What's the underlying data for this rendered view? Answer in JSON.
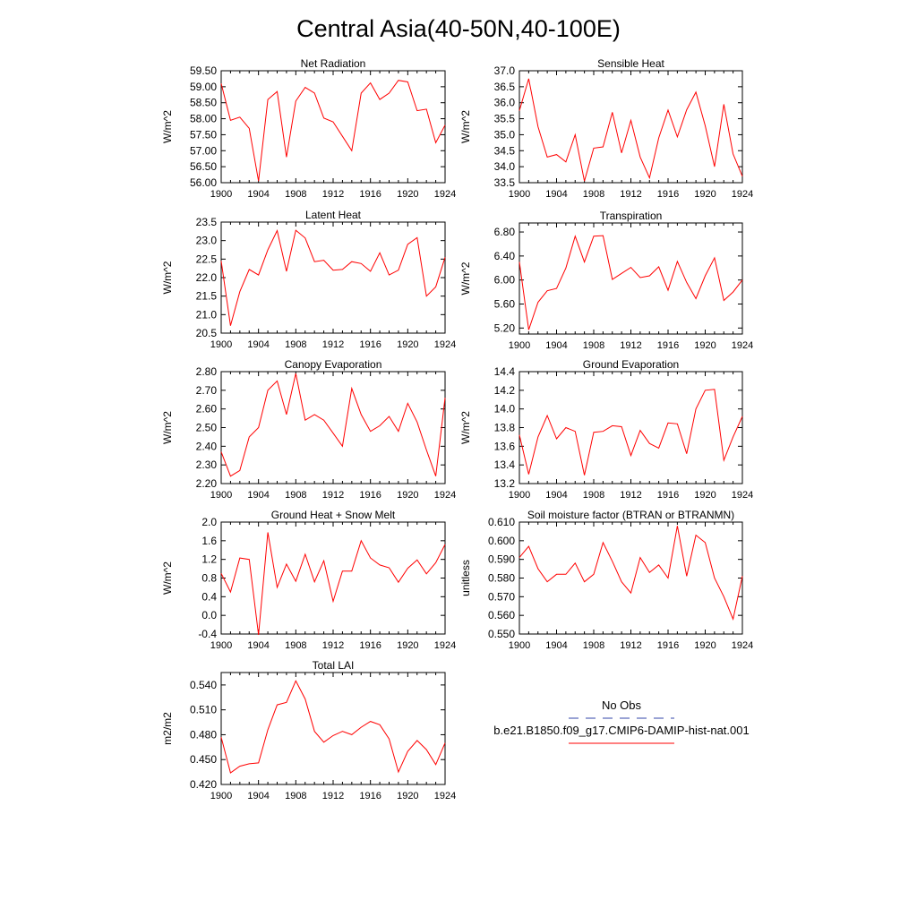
{
  "title": "Central Asia(40-50N,40-100E)",
  "legend": {
    "obs_label": "No Obs",
    "obs_color": "#3344aa",
    "model_label": "b.e21.B1850.f09_g17.CMIP6-DAMIP-hist-nat.001",
    "model_color": "#ff0000"
  },
  "chart_data": [
    {
      "type": "line",
      "title": "Net Radiation",
      "ylabel": "W/m^2",
      "xlim": [
        1900,
        1924
      ],
      "ylim": [
        56.0,
        59.5
      ],
      "xticks": [
        "1900",
        "1904",
        "1908",
        "1912",
        "1916",
        "1920",
        "1924"
      ],
      "yticks": [
        "56.00",
        "56.50",
        "57.00",
        "57.50",
        "58.00",
        "58.50",
        "59.00",
        "59.50"
      ],
      "series": [
        {
          "color": "#ff0000",
          "x": [
            1900,
            1901,
            1902,
            1903,
            1904,
            1905,
            1906,
            1907,
            1908,
            1909,
            1910,
            1911,
            1912,
            1913,
            1914,
            1915,
            1916,
            1917,
            1918,
            1919,
            1920,
            1921,
            1922,
            1923,
            1924
          ],
          "y": [
            59.1,
            57.95,
            58.05,
            57.7,
            56.05,
            58.6,
            58.85,
            56.8,
            58.55,
            58.98,
            58.8,
            58.02,
            57.9,
            57.45,
            57.0,
            58.8,
            59.12,
            58.6,
            58.8,
            59.2,
            59.15,
            58.25,
            58.3,
            57.25,
            57.8
          ]
        }
      ]
    },
    {
      "type": "line",
      "title": "Sensible Heat",
      "ylabel": "W/m^2",
      "xlim": [
        1900,
        1924
      ],
      "ylim": [
        33.5,
        37.0
      ],
      "xticks": [
        "1900",
        "1904",
        "1908",
        "1912",
        "1916",
        "1920",
        "1924"
      ],
      "yticks": [
        "33.5",
        "34.0",
        "34.5",
        "35.0",
        "35.5",
        "36.0",
        "36.5",
        "37.0"
      ],
      "series": [
        {
          "color": "#ff0000",
          "x": [
            1900,
            1901,
            1902,
            1903,
            1904,
            1905,
            1906,
            1907,
            1908,
            1909,
            1910,
            1911,
            1912,
            1913,
            1914,
            1915,
            1916,
            1917,
            1918,
            1919,
            1920,
            1921,
            1922,
            1923,
            1924
          ],
          "y": [
            35.75,
            36.75,
            35.25,
            34.3,
            34.38,
            34.15,
            35.0,
            33.55,
            34.58,
            34.62,
            35.7,
            34.43,
            35.45,
            34.3,
            33.65,
            34.9,
            35.77,
            34.93,
            35.78,
            36.33,
            35.28,
            34.0,
            35.95,
            34.4,
            33.7
          ]
        }
      ]
    },
    {
      "type": "line",
      "title": "Latent Heat",
      "ylabel": "W/m^2",
      "xlim": [
        1900,
        1924
      ],
      "ylim": [
        20.5,
        23.5
      ],
      "xticks": [
        "1900",
        "1904",
        "1908",
        "1912",
        "1916",
        "1920",
        "1924"
      ],
      "yticks": [
        "20.5",
        "21.0",
        "21.5",
        "22.0",
        "22.5",
        "23.0",
        "23.5"
      ],
      "series": [
        {
          "color": "#ff0000",
          "x": [
            1900,
            1901,
            1902,
            1903,
            1904,
            1905,
            1906,
            1907,
            1908,
            1909,
            1910,
            1911,
            1912,
            1913,
            1914,
            1915,
            1916,
            1917,
            1918,
            1919,
            1920,
            1921,
            1922,
            1923,
            1924
          ],
          "y": [
            22.45,
            20.7,
            21.62,
            22.22,
            22.07,
            22.75,
            23.27,
            22.17,
            23.28,
            23.07,
            22.43,
            22.47,
            22.2,
            22.22,
            22.43,
            22.38,
            22.17,
            22.67,
            22.07,
            22.2,
            22.9,
            23.08,
            21.5,
            21.75,
            22.55
          ]
        }
      ]
    },
    {
      "type": "line",
      "title": "Transpiration",
      "ylabel": "W/m^2",
      "xlim": [
        1900,
        1924
      ],
      "ylim": [
        5.1,
        6.95
      ],
      "xticks": [
        "1900",
        "1904",
        "1908",
        "1912",
        "1916",
        "1920",
        "1924"
      ],
      "yticks": [
        "5.20",
        "5.60",
        "6.00",
        "6.40",
        "6.80"
      ],
      "ytickvals": [
        5.2,
        5.6,
        6.0,
        6.4,
        6.8
      ],
      "series": [
        {
          "color": "#ff0000",
          "x": [
            1900,
            1901,
            1902,
            1903,
            1904,
            1905,
            1906,
            1907,
            1908,
            1909,
            1910,
            1911,
            1912,
            1913,
            1914,
            1915,
            1916,
            1917,
            1918,
            1919,
            1920,
            1921,
            1922,
            1923,
            1924
          ],
          "y": [
            6.3,
            5.17,
            5.63,
            5.82,
            5.86,
            6.2,
            6.73,
            6.3,
            6.73,
            6.74,
            6.01,
            6.11,
            6.21,
            6.04,
            6.07,
            6.22,
            5.83,
            6.31,
            5.96,
            5.69,
            6.07,
            6.37,
            5.66,
            5.8,
            6.0
          ]
        }
      ]
    },
    {
      "type": "line",
      "title": "Canopy Evaporation",
      "ylabel": "W/m^2",
      "xlim": [
        1900,
        1924
      ],
      "ylim": [
        2.2,
        2.8
      ],
      "xticks": [
        "1900",
        "1904",
        "1908",
        "1912",
        "1916",
        "1920",
        "1924"
      ],
      "yticks": [
        "2.20",
        "2.30",
        "2.40",
        "2.50",
        "2.60",
        "2.70",
        "2.80"
      ],
      "series": [
        {
          "color": "#ff0000",
          "x": [
            1900,
            1901,
            1902,
            1903,
            1904,
            1905,
            1906,
            1907,
            1908,
            1909,
            1910,
            1911,
            1912,
            1913,
            1914,
            1915,
            1916,
            1917,
            1918,
            1919,
            1920,
            1921,
            1922,
            1923,
            1924
          ],
          "y": [
            2.37,
            2.24,
            2.27,
            2.45,
            2.5,
            2.7,
            2.75,
            2.57,
            2.79,
            2.54,
            2.57,
            2.54,
            2.47,
            2.4,
            2.71,
            2.57,
            2.48,
            2.51,
            2.56,
            2.48,
            2.63,
            2.53,
            2.38,
            2.24,
            2.66
          ]
        }
      ]
    },
    {
      "type": "line",
      "title": "Ground Evaporation",
      "ylabel": "W/m^2",
      "xlim": [
        1900,
        1924
      ],
      "ylim": [
        13.2,
        14.4
      ],
      "xticks": [
        "1900",
        "1904",
        "1908",
        "1912",
        "1916",
        "1920",
        "1924"
      ],
      "yticks": [
        "13.2",
        "13.4",
        "13.6",
        "13.8",
        "14.0",
        "14.2",
        "14.4"
      ],
      "series": [
        {
          "color": "#ff0000",
          "x": [
            1900,
            1901,
            1902,
            1903,
            1904,
            1905,
            1906,
            1907,
            1908,
            1909,
            1910,
            1911,
            1912,
            1913,
            1914,
            1915,
            1916,
            1917,
            1918,
            1919,
            1920,
            1921,
            1922,
            1923,
            1924
          ],
          "y": [
            13.72,
            13.3,
            13.7,
            13.93,
            13.68,
            13.8,
            13.76,
            13.29,
            13.75,
            13.76,
            13.82,
            13.81,
            13.5,
            13.77,
            13.63,
            13.58,
            13.85,
            13.84,
            13.52,
            14.0,
            14.2,
            14.21,
            13.45,
            13.7,
            13.92
          ]
        }
      ]
    },
    {
      "type": "line",
      "title": "Ground Heat + Snow Melt",
      "ylabel": "W/m^2",
      "xlim": [
        1900,
        1924
      ],
      "ylim": [
        -0.4,
        2.0
      ],
      "xticks": [
        "1900",
        "1904",
        "1908",
        "1912",
        "1916",
        "1920",
        "1924"
      ],
      "yticks": [
        "-0.4",
        "0.0",
        "0.4",
        "0.8",
        "1.2",
        "1.6",
        "2.0"
      ],
      "series": [
        {
          "color": "#ff0000",
          "x": [
            1900,
            1901,
            1902,
            1903,
            1904,
            1905,
            1906,
            1907,
            1908,
            1909,
            1910,
            1911,
            1912,
            1913,
            1914,
            1915,
            1916,
            1917,
            1918,
            1919,
            1920,
            1921,
            1922,
            1923,
            1924
          ],
          "y": [
            0.9,
            0.5,
            1.23,
            1.2,
            -0.42,
            1.78,
            0.6,
            1.1,
            0.73,
            1.31,
            0.72,
            1.17,
            0.3,
            0.95,
            0.95,
            1.6,
            1.23,
            1.08,
            1.02,
            0.71,
            1.01,
            1.19,
            0.89,
            1.13,
            1.52
          ]
        }
      ]
    },
    {
      "type": "line",
      "title": "Soil moisture factor (BTRAN or BTRANMN)",
      "ylabel": "unitless",
      "xlim": [
        1900,
        1924
      ],
      "ylim": [
        0.55,
        0.61
      ],
      "xticks": [
        "1900",
        "1904",
        "1908",
        "1912",
        "1916",
        "1920",
        "1924"
      ],
      "yticks": [
        "0.550",
        "0.560",
        "0.570",
        "0.580",
        "0.590",
        "0.600",
        "0.610"
      ],
      "series": [
        {
          "color": "#ff0000",
          "x": [
            1900,
            1901,
            1902,
            1903,
            1904,
            1905,
            1906,
            1907,
            1908,
            1909,
            1910,
            1911,
            1912,
            1913,
            1914,
            1915,
            1916,
            1917,
            1918,
            1919,
            1920,
            1921,
            1922,
            1923,
            1924
          ],
          "y": [
            0.591,
            0.597,
            0.585,
            0.578,
            0.582,
            0.582,
            0.588,
            0.578,
            0.582,
            0.599,
            0.589,
            0.578,
            0.572,
            0.591,
            0.583,
            0.587,
            0.58,
            0.608,
            0.581,
            0.603,
            0.599,
            0.58,
            0.57,
            0.558,
            0.581
          ]
        }
      ]
    },
    {
      "type": "line",
      "title": "Total LAI",
      "ylabel": "m2/m2",
      "xlim": [
        1900,
        1924
      ],
      "ylim": [
        0.42,
        0.555
      ],
      "xticks": [
        "1900",
        "1904",
        "1908",
        "1912",
        "1916",
        "1920",
        "1924"
      ],
      "yticks": [
        "0.420",
        "0.450",
        "0.480",
        "0.510",
        "0.540"
      ],
      "ytickvals": [
        0.42,
        0.45,
        0.48,
        0.51,
        0.54
      ],
      "series": [
        {
          "color": "#ff0000",
          "x": [
            1900,
            1901,
            1902,
            1903,
            1904,
            1905,
            1906,
            1907,
            1908,
            1909,
            1910,
            1911,
            1912,
            1913,
            1914,
            1915,
            1916,
            1917,
            1918,
            1919,
            1920,
            1921,
            1922,
            1923,
            1924
          ],
          "y": [
            0.477,
            0.434,
            0.442,
            0.445,
            0.446,
            0.486,
            0.516,
            0.519,
            0.545,
            0.523,
            0.484,
            0.471,
            0.479,
            0.484,
            0.48,
            0.489,
            0.496,
            0.492,
            0.475,
            0.435,
            0.46,
            0.473,
            0.462,
            0.444,
            0.47
          ]
        }
      ]
    }
  ]
}
